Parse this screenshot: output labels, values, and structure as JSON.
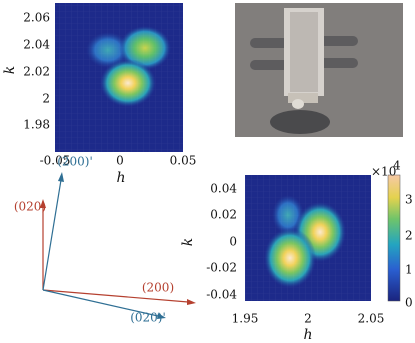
{
  "panel_a": {
    "xlabel": "h",
    "ylabel": "k",
    "xticks": [
      "-0.05",
      "0",
      "0.05"
    ],
    "yticks": [
      "2.06",
      "2.04",
      "2.02",
      "2",
      "1.98"
    ]
  },
  "vectors": {
    "red_vertical": "(020)",
    "blue_vertical": "(200)'",
    "red_horizontal": "(200)",
    "blue_horizontal": "(020)'"
  },
  "panel_b": {
    "xlabel": "h",
    "ylabel": "k",
    "xticks": [
      "1.95",
      "2",
      "2.05"
    ],
    "yticks": [
      "0.04",
      "0.02",
      "0",
      "-0.02",
      "-0.04"
    ],
    "colorbar": {
      "multiplier": "×10",
      "exponent": "4",
      "ticks": [
        "3",
        "2",
        "1",
        "0"
      ]
    }
  }
}
